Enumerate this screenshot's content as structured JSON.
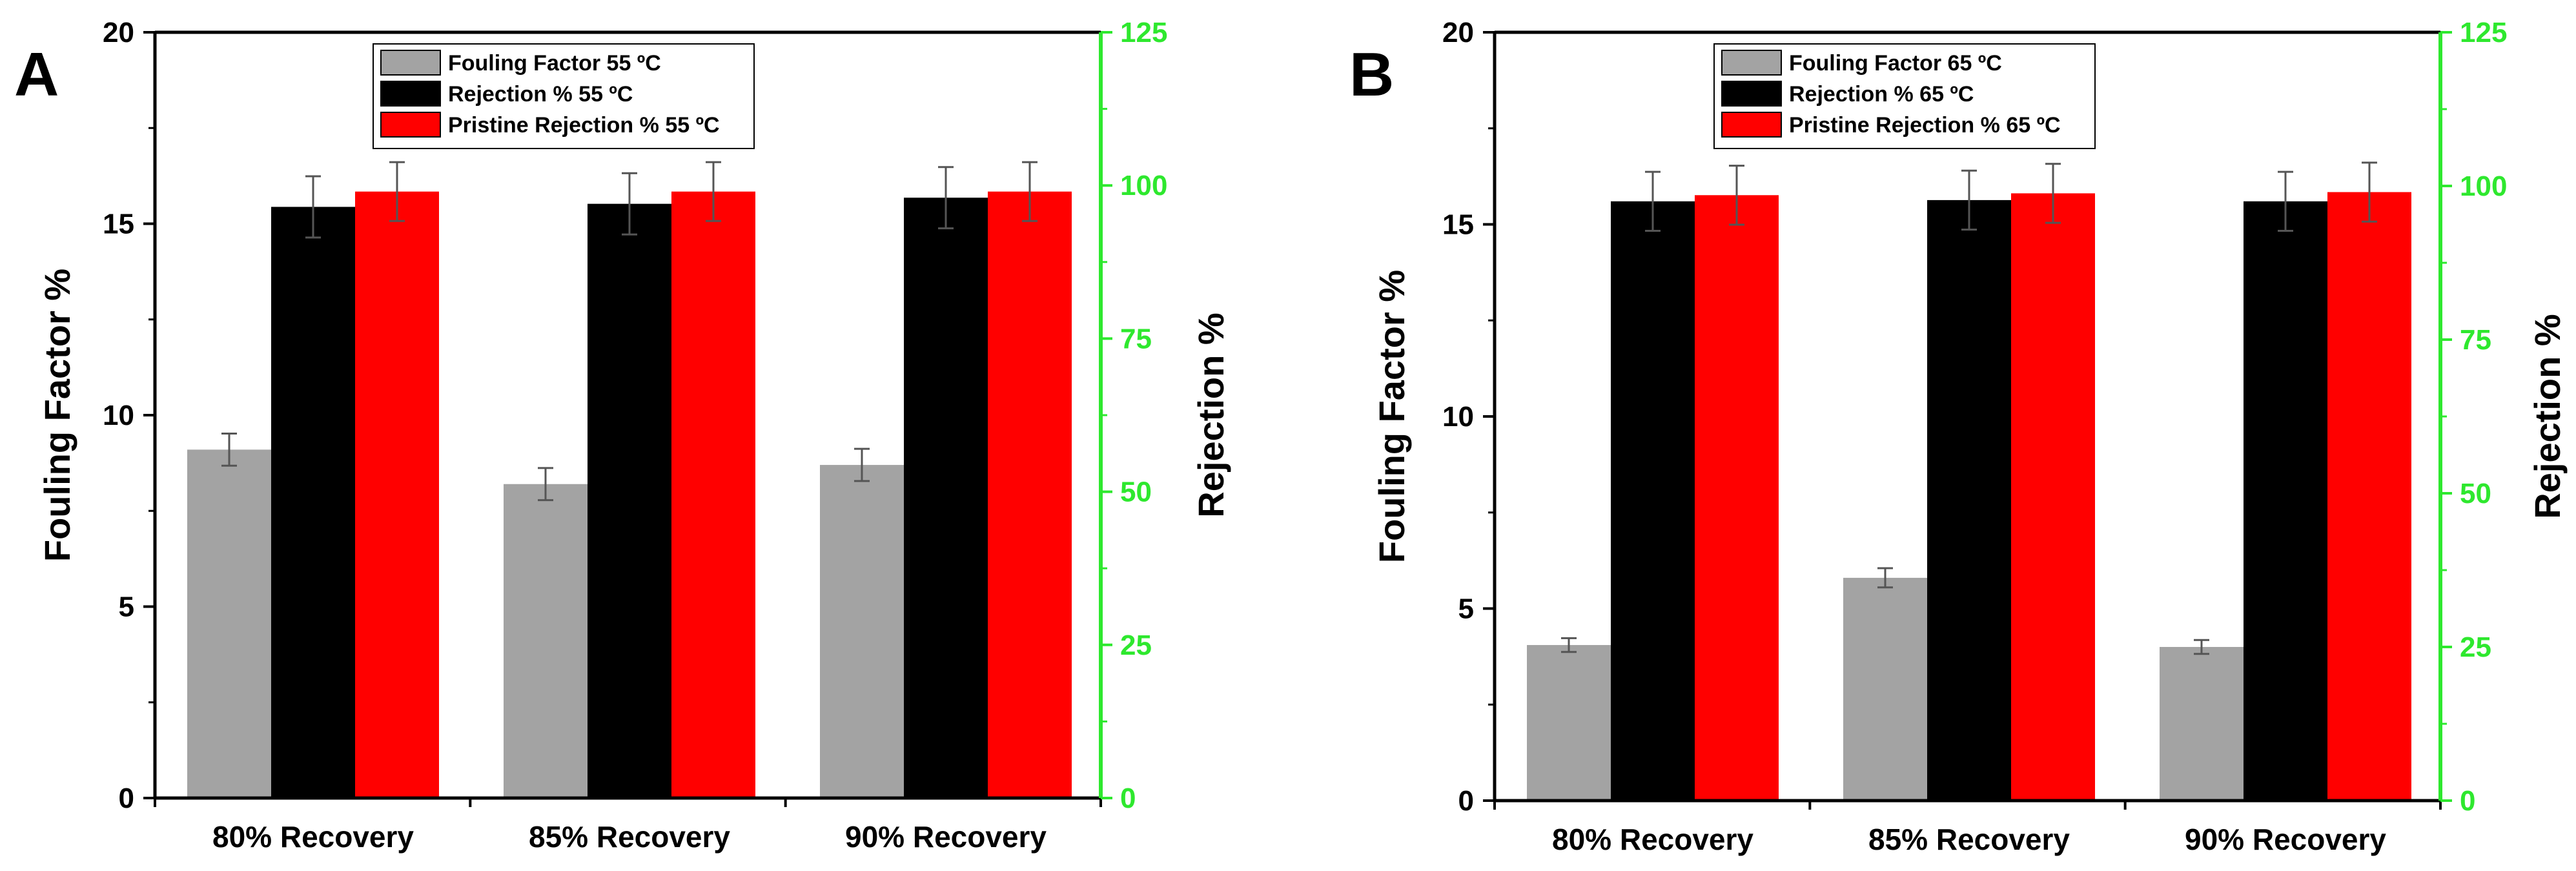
{
  "colors": {
    "fouling": "#a3a3a3",
    "rejection": "#000000",
    "pristine": "#ff0000",
    "right_axis": "#2ee82e",
    "error_bar": "#555555"
  },
  "chart_data": [
    {
      "panel_letter": "A",
      "type": "bar",
      "categories": [
        "80%  Recovery",
        "85%  Recovery",
        "90%  Recovery"
      ],
      "ylabel": "Fouling Factor %",
      "y2label": "Rejection  %",
      "ylim": [
        0,
        20
      ],
      "y2lim": [
        0,
        125
      ],
      "yticks": [
        0,
        5,
        10,
        15,
        20
      ],
      "y2ticks": [
        0,
        25,
        50,
        75,
        100,
        125
      ],
      "legend_position": "top-center",
      "series": [
        {
          "name": "Fouling Factor 55 ºC",
          "axis": "left",
          "color_key": "fouling",
          "values": [
            9.1,
            8.2,
            8.7
          ],
          "errors": [
            0.42,
            0.42,
            0.42
          ]
        },
        {
          "name": "Rejection  % 55 ºC",
          "axis": "right",
          "color_key": "rejection",
          "values": [
            96.5,
            97.0,
            98.0
          ],
          "errors": [
            5.0,
            5.0,
            5.0
          ]
        },
        {
          "name": "Pristine Rejection % 55 ºC",
          "axis": "right",
          "color_key": "pristine",
          "values": [
            99.0,
            99.0,
            99.0
          ],
          "errors": [
            4.8,
            4.8,
            4.8
          ]
        }
      ]
    },
    {
      "panel_letter": "B",
      "type": "bar",
      "categories": [
        "80%  Recovery",
        "85%  Recovery",
        "90%  Recovery"
      ],
      "ylabel": "Fouling Factor %",
      "y2label": "Rejection  %",
      "ylim": [
        0,
        20
      ],
      "y2lim": [
        0,
        125
      ],
      "yticks": [
        0,
        5,
        10,
        15,
        20
      ],
      "y2ticks": [
        0,
        25,
        50,
        75,
        100,
        125
      ],
      "legend_position": "top-center",
      "series": [
        {
          "name": "Fouling Factor 65 ºC",
          "axis": "left",
          "color_key": "fouling",
          "values": [
            4.05,
            5.8,
            4.0
          ],
          "errors": [
            0.18,
            0.25,
            0.18
          ]
        },
        {
          "name": "Rejection  % 65 ºC",
          "axis": "right",
          "color_key": "rejection",
          "values": [
            97.5,
            97.7,
            97.5
          ],
          "errors": [
            4.8,
            4.8,
            4.8
          ]
        },
        {
          "name": "Pristine Rejection % 65 ºC",
          "axis": "right",
          "color_key": "pristine",
          "values": [
            98.5,
            98.8,
            99.0
          ],
          "errors": [
            4.8,
            4.8,
            4.8
          ]
        }
      ]
    }
  ]
}
